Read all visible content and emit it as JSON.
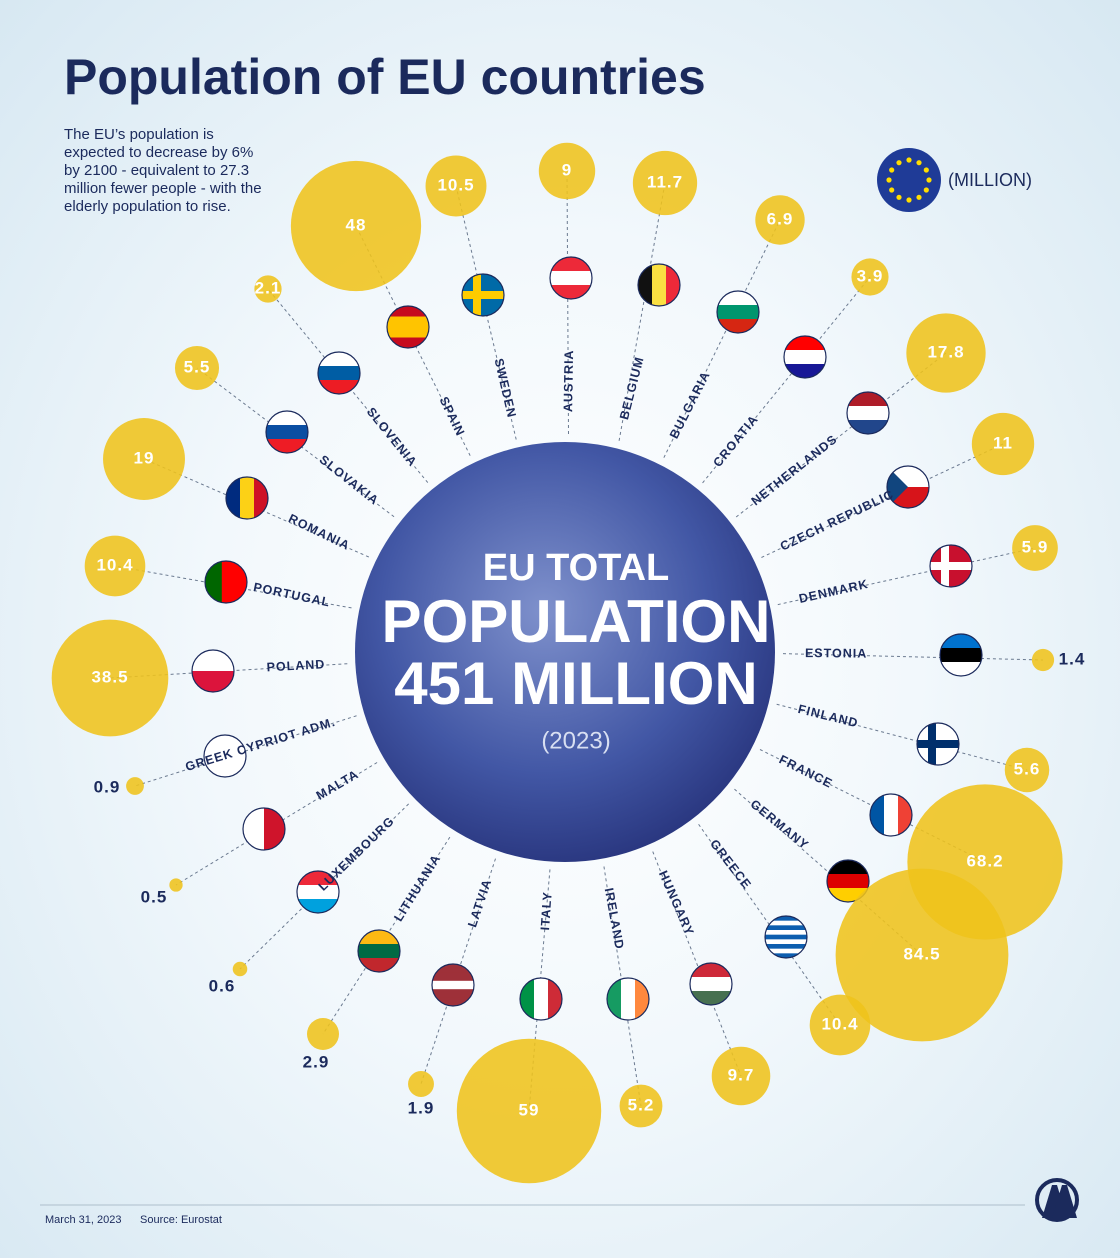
{
  "chart_data": {
    "type": "bubble",
    "title": "Population of EU countries",
    "subtitle": "The EU’s population is expected to decrease by 6% by 2100 - equivalent to 27.3 million fewer people - with the elderly population to rise.",
    "unit_label": "(MILLION)",
    "center": {
      "line1": "EU TOTAL",
      "line2": "POPULATION",
      "line3": "451 MILLION",
      "line4": "(2023)"
    },
    "color": "#efc31b",
    "categories": [
      "SPAIN",
      "SWEDEN",
      "AUSTRIA",
      "BELGIUM",
      "BULGARIA",
      "CROATIA",
      "NETHERLANDS",
      "CZECH REPUBLIC",
      "DENMARK",
      "ESTONIA",
      "FINLAND",
      "FRANCE",
      "GERMANY",
      "GREECE",
      "HUNGARY",
      "IRELAND",
      "ITALY",
      "LATVIA",
      "LITHUANIA",
      "LUXEMBOURG",
      "MALTA",
      "GREEK CYPRIOT ADM.",
      "POLAND",
      "PORTUGAL",
      "ROMANIA",
      "SLOVAKIA",
      "SLOVENIA"
    ],
    "values": [
      48,
      10.5,
      9,
      11.7,
      6.9,
      3.9,
      17.8,
      11,
      5.9,
      1.4,
      5.6,
      68.2,
      84.5,
      10.4,
      9.7,
      5.2,
      59,
      1.9,
      2.9,
      0.6,
      0.5,
      0.9,
      38.5,
      10.4,
      19,
      5.5,
      2.1
    ],
    "footer": {
      "date": "March 31, 2023",
      "source": "Source: Eurostat"
    }
  }
}
